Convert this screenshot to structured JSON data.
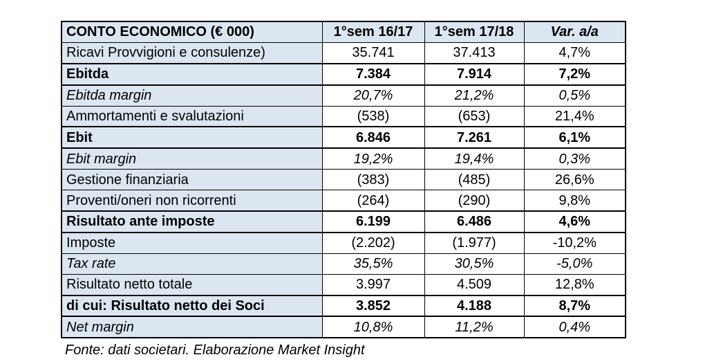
{
  "colors": {
    "accent_bg": "#dce6f1",
    "border": "#000000",
    "text": "#000000"
  },
  "table": {
    "header": {
      "label": "CONTO ECONOMICO (€ 000)",
      "col_sem_16_17": "1°sem 16/17",
      "col_sem_17_18": "1°sem 17/18",
      "col_var": "Var. a/a"
    },
    "rows": [
      {
        "label": "Ricavi Provvigioni e consulenze)",
        "sem_16_17": "35.741",
        "sem_17_18": "37.413",
        "var": "4,7%",
        "style": "normal"
      },
      {
        "label": "Ebitda",
        "sem_16_17": "7.384",
        "sem_17_18": "7.914",
        "var": "7,2%",
        "style": "bold"
      },
      {
        "label": "Ebitda margin",
        "sem_16_17": "20,7%",
        "sem_17_18": "21,2%",
        "var": "0,5%",
        "style": "italic"
      },
      {
        "label": "Ammortamenti e svalutazioni",
        "sem_16_17": "(538)",
        "sem_17_18": "(653)",
        "var": "21,4%",
        "style": "normal"
      },
      {
        "label": "Ebit",
        "sem_16_17": "6.846",
        "sem_17_18": "7.261",
        "var": "6,1%",
        "style": "bold"
      },
      {
        "label": "Ebit margin",
        "sem_16_17": "19,2%",
        "sem_17_18": "19,4%",
        "var": "0,3%",
        "style": "italic"
      },
      {
        "label": "Gestione finanziaria",
        "sem_16_17": "(383)",
        "sem_17_18": "(485)",
        "var": "26,6%",
        "style": "normal"
      },
      {
        "label": "Proventi/oneri non ricorrenti",
        "sem_16_17": "(264)",
        "sem_17_18": "(290)",
        "var": "9,8%",
        "style": "normal"
      },
      {
        "label": "Risultato ante imposte",
        "sem_16_17": "6.199",
        "sem_17_18": "6.486",
        "var": "4,6%",
        "style": "bold"
      },
      {
        "label": "Imposte",
        "sem_16_17": "(2.202)",
        "sem_17_18": "(1.977)",
        "var": "-10,2%",
        "style": "normal"
      },
      {
        "label": "Tax rate",
        "sem_16_17": "35,5%",
        "sem_17_18": "30,5%",
        "var": "-5,0%",
        "style": "italic"
      },
      {
        "label": "Risultato netto totale",
        "sem_16_17": "3.997",
        "sem_17_18": "4.509",
        "var": "12,8%",
        "style": "normal"
      },
      {
        "label": "di cui: Risultato netto dei Soci",
        "sem_16_17": "3.852",
        "sem_17_18": "4.188",
        "var": "8,7%",
        "style": "bold"
      },
      {
        "label": "Net margin",
        "sem_16_17": "10,8%",
        "sem_17_18": "11,2%",
        "var": "0,4%",
        "style": "italic"
      }
    ]
  },
  "footer": {
    "source_note": "Fonte: dati societari. Elaborazione Market Insight"
  }
}
